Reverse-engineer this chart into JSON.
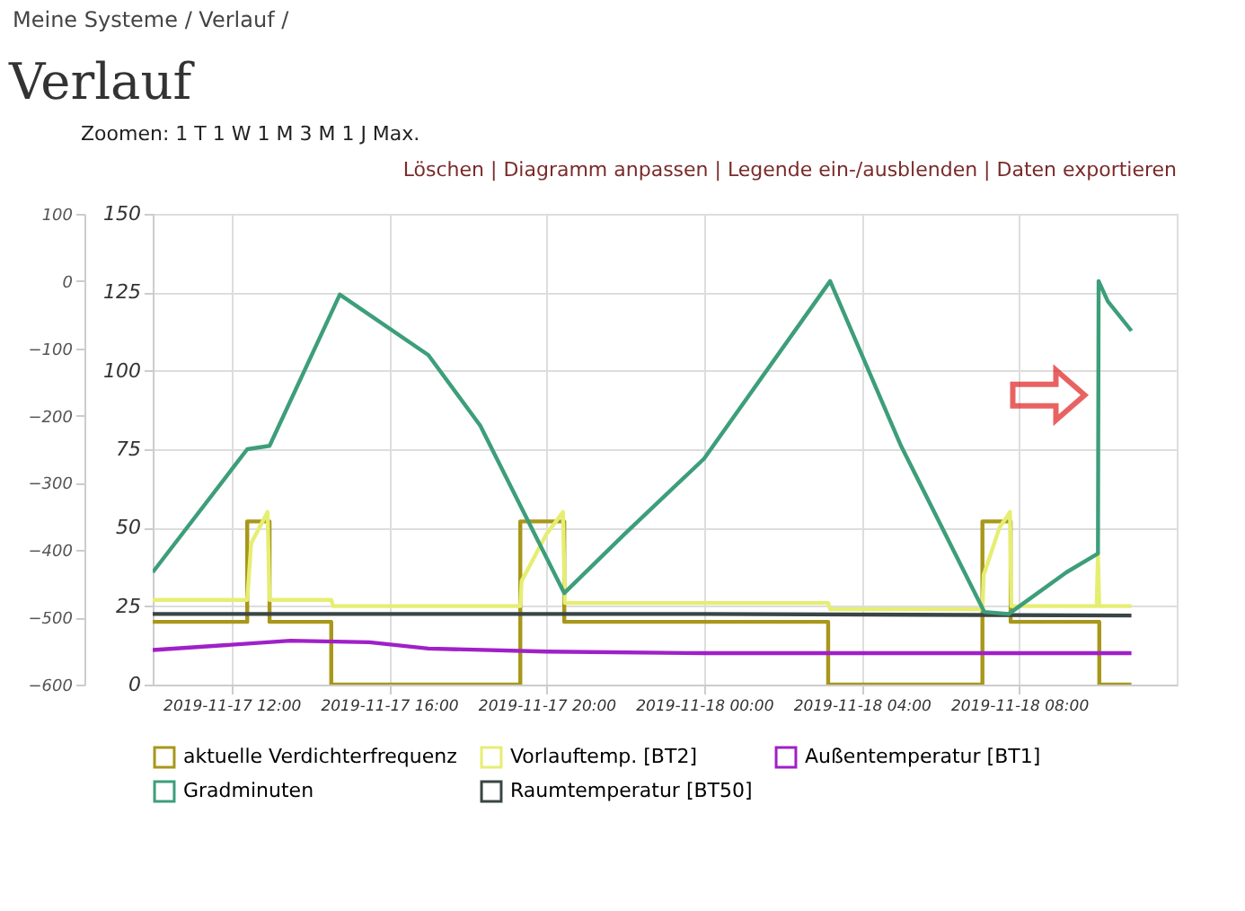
{
  "chart_data": {
    "type": "line",
    "title": "Verlauf",
    "subtitle": "Meine Systeme / Verlauf /",
    "annotations": [
      "Zoomen: 1 T 1 W 1 M 3 M 1 J Max.",
      "Löschen | Diagramm anpassen | Legende ein-/ausblenden | Daten exportieren"
    ],
    "xlim": [
      "2019-11-17T10:00",
      "2019-11-18T12:00"
    ],
    "xticks": [
      {
        "value": "2019-11-17T12:00",
        "label": "2019-11-17 12:00"
      },
      {
        "value": "2019-11-17T16:00",
        "label": "2019-11-17 16:00"
      },
      {
        "value": "2019-11-17T20:00",
        "label": "2019-11-17 20:00"
      },
      {
        "value": "2019-11-18T00:00",
        "label": "2019-11-18 00:00"
      },
      {
        "value": "2019-11-18T04:00",
        "label": "2019-11-18 04:00"
      },
      {
        "value": "2019-11-18T08:00",
        "label": "2019-11-18 08:00"
      }
    ],
    "ylim": [
      0,
      150
    ],
    "yticks": [
      0,
      25,
      50,
      75,
      100,
      125,
      150
    ],
    "y2lim": [
      -600,
      100
    ],
    "y2ticks": [
      -600,
      -500,
      -400,
      -300,
      -200,
      -100,
      0,
      100
    ],
    "grid": true,
    "legend": "bottom",
    "series": [
      {
        "name": "aktuelle Verdichterfrequenz",
        "type": "step",
        "color": "#a8971a",
        "x": [
          "2019-11-17T10:00",
          "2019-11-17T12:24",
          "2019-11-17T12:58",
          "2019-11-17T14:32",
          "2019-11-17T19:20",
          "2019-11-17T20:27",
          "2019-11-18T03:09",
          "2019-11-18T07:04",
          "2019-11-18T07:47",
          "2019-11-18T10:02",
          "2019-11-18T10:51"
        ],
        "values": [
          20,
          52,
          20,
          0,
          52,
          20,
          0,
          52,
          20,
          0,
          0
        ]
      },
      {
        "name": "Vorlauftemp. [BT2]",
        "type": "line",
        "color": "#e6ee72",
        "x": [
          "2019-11-17T10:00",
          "2019-11-17T12:24",
          "2019-11-17T12:30",
          "2019-11-17T12:55",
          "2019-11-17T12:58",
          "2019-11-17T14:32",
          "2019-11-17T14:35",
          "2019-11-17T19:20",
          "2019-11-17T19:22",
          "2019-11-17T20:00",
          "2019-11-17T20:25",
          "2019-11-17T20:28",
          "2019-11-18T03:09",
          "2019-11-18T03:12",
          "2019-11-18T07:04",
          "2019-11-18T07:06",
          "2019-11-18T07:30",
          "2019-11-18T07:46",
          "2019-11-18T07:48",
          "2019-11-18T09:58",
          "2019-11-18T10:00",
          "2019-11-18T10:02",
          "2019-11-18T10:51"
        ],
        "values": [
          27,
          27,
          45,
          55,
          27,
          27,
          25,
          25,
          33,
          48,
          55,
          26,
          26,
          24,
          24,
          35,
          50,
          55,
          25,
          25,
          42,
          25,
          25
        ]
      },
      {
        "name": "Außentemperatur [BT1]",
        "type": "line",
        "color": "#a020c8",
        "x": [
          "2019-11-17T10:00",
          "2019-11-17T13:30",
          "2019-11-17T15:30",
          "2019-11-17T17:00",
          "2019-11-17T20:00",
          "2019-11-18T00:00",
          "2019-11-18T10:51"
        ],
        "values": [
          11,
          14,
          13.5,
          11.5,
          10.5,
          10,
          10
        ]
      },
      {
        "name": "Gradminuten",
        "type": "line",
        "axis": "y2",
        "color": "#3d9e7a",
        "x": [
          "2019-11-17T10:00",
          "2019-11-17T12:24",
          "2019-11-17T12:58",
          "2019-11-17T14:45",
          "2019-11-17T17:00",
          "2019-11-17T18:19",
          "2019-11-17T20:27",
          "2019-11-17T22:00",
          "2019-11-18T00:00",
          "2019-11-18T03:12",
          "2019-11-18T05:00",
          "2019-11-18T07:07",
          "2019-11-18T07:44",
          "2019-11-18T09:12",
          "2019-11-18T10:00",
          "2019-11-18T10:01",
          "2019-11-18T10:15",
          "2019-11-18T10:51"
        ],
        "values": [
          -433,
          -250,
          -245,
          -20,
          -110,
          -215,
          -464,
          -375,
          -264,
          0,
          -245,
          -492,
          -495,
          -433,
          -405,
          0,
          -30,
          -74
        ]
      },
      {
        "name": "Raumtemperatur [BT50]",
        "type": "line",
        "color": "#3a4545",
        "x": [
          "2019-11-17T10:00",
          "2019-11-18T00:00",
          "2019-11-18T10:51"
        ],
        "values": [
          22.5,
          22.5,
          22
        ]
      }
    ]
  }
}
